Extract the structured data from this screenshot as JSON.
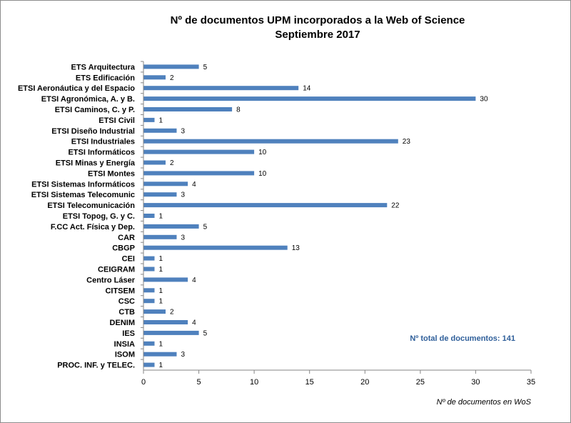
{
  "chart_data": {
    "type": "bar",
    "orientation": "horizontal",
    "title": "Nº de documentos UPM incorporados a la Web of Science",
    "subtitle": "Septiembre 2017",
    "xlabel": "Nº de documentos en WoS",
    "ylabel": "",
    "xlim": [
      0,
      35
    ],
    "xticks": [
      0,
      5,
      10,
      15,
      20,
      25,
      30,
      35
    ],
    "grid": false,
    "legend": "none",
    "bar_color": "#4f81bd",
    "categories": [
      "ETS Arquitectura",
      "ETS Edificación",
      "ETSI Aeronáutica y del Espacio",
      "ETSI Agronómica, A. y B.",
      "ETSI Caminos, C. y P.",
      "ETSI Civil",
      "ETSI Diseño Industrial",
      "ETSI Industriales",
      "ETSI Informáticos",
      "ETSI Minas y Energía",
      "ETSI Montes",
      "ETSI Sistemas Informáticos",
      "ETSI Sistemas Telecomunic",
      "ETSI Telecomunicación",
      "ETSI Topog, G. y C.",
      "F.CC Act. Física y Dep.",
      "CAR",
      "CBGP",
      "CEI",
      "CEIGRAM",
      "Centro Láser",
      "CITSEM",
      "CSC",
      "CTB",
      "DENIM",
      "IES",
      "INSIA",
      "ISOM",
      "PROC. INF. y TELEC."
    ],
    "values": [
      5,
      2,
      14,
      30,
      8,
      1,
      3,
      23,
      10,
      2,
      10,
      4,
      3,
      22,
      1,
      5,
      3,
      13,
      1,
      1,
      4,
      1,
      1,
      2,
      4,
      5,
      1,
      3,
      1
    ],
    "annotation": "Nº total de documentos:  141",
    "annotation_color": "#2f5f9a"
  }
}
